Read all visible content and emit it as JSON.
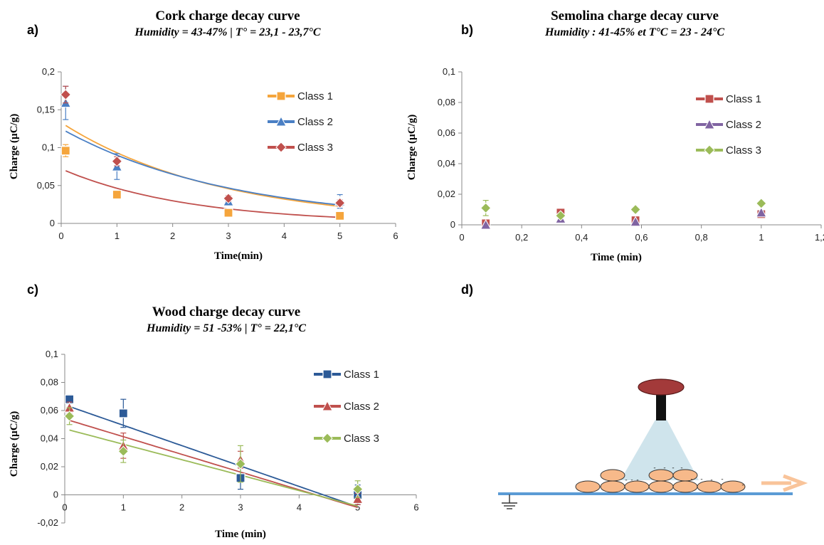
{
  "panel_labels": [
    "a)",
    "b)",
    "c)",
    "d)"
  ],
  "colors": {
    "orange": "#f5a53c",
    "blue": "#4a7fc4",
    "red": "#c0504d",
    "purple": "#8064a2",
    "green": "#9bbb59",
    "navy": "#2c5a97",
    "diagram_line": "#5b9bd5",
    "particle": "#f7b98a",
    "head": "#a33a3a",
    "beam": "#cfe4ec",
    "arrow": "#f9c49a"
  },
  "chart_data": [
    {
      "id": "a",
      "type": "scatter",
      "title": "Cork charge decay curve",
      "subtitle": "Humidity = 43-47%   |  T° = 23,1 - 23,7°C",
      "xlabel": "Time(min)",
      "ylabel": "Charge (µC/g)",
      "xlim": [
        0,
        6
      ],
      "ylim": [
        0,
        0.2
      ],
      "xticks": [
        "0",
        "1",
        "2",
        "3",
        "4",
        "5",
        "6"
      ],
      "yticks": [
        "0",
        "0,05",
        "0,1",
        "0,15",
        "0,2"
      ],
      "legend_position": "top-right",
      "series": [
        {
          "name": "Class 1",
          "color": "#f5a53c",
          "marker": "square",
          "x": [
            0.08,
            1,
            3,
            5
          ],
          "y": [
            0.096,
            0.038,
            0.014,
            0.01
          ],
          "err": [
            0.008,
            0.003,
            0.002,
            0.002
          ],
          "trend": {
            "type": "exp",
            "a": 0.133,
            "b": 0.355
          }
        },
        {
          "name": "Class 2",
          "color": "#4a7fc4",
          "marker": "triangle",
          "x": [
            0.08,
            1,
            3,
            5
          ],
          "y": [
            0.159,
            0.075,
            0.029,
            0.029
          ],
          "err": [
            0.022,
            0.017,
            0.005,
            0.009
          ],
          "trend": {
            "type": "exp",
            "a": 0.125,
            "b": 0.328
          }
        },
        {
          "name": "Class 3",
          "color": "#c0504d",
          "marker": "diamond",
          "x": [
            0.08,
            1,
            3,
            5
          ],
          "y": [
            0.17,
            0.082,
            0.033,
            0.027
          ],
          "err": [
            0.011,
            0.006,
            0.004,
            0.004
          ],
          "trend": {
            "type": "exp",
            "a": 0.072,
            "b": 0.44
          }
        }
      ]
    },
    {
      "id": "b",
      "type": "scatter",
      "title": "Semolina charge decay curve",
      "subtitle": "Humidity : 41-45%  et T°C = 23 - 24°C",
      "xlabel": "Time (min)",
      "ylabel": "Charge (µC/g)",
      "xlim": [
        0,
        1.2
      ],
      "ylim": [
        0,
        0.1
      ],
      "xticks": [
        "0",
        "0,2",
        "0,4",
        "0,6",
        "0,8",
        "1",
        "1,2"
      ],
      "yticks": [
        "0",
        "0,02",
        "0,04",
        "0,06",
        "0,08",
        "0,1"
      ],
      "legend_position": "top-right",
      "series": [
        {
          "name": "Class 1",
          "color": "#c0504d",
          "marker": "square",
          "x": [
            0.08,
            0.33,
            0.58,
            1
          ],
          "y": [
            0.001,
            0.008,
            0.003,
            0.007
          ],
          "err": [
            0.001,
            0.001,
            0.001,
            0.001
          ]
        },
        {
          "name": "Class 2",
          "color": "#8064a2",
          "marker": "triangle",
          "x": [
            0.08,
            0.33,
            0.58,
            1
          ],
          "y": [
            0.0,
            0.004,
            0.002,
            0.008
          ],
          "err": [
            0.001,
            0.001,
            0.001,
            0.001
          ]
        },
        {
          "name": "Class 3",
          "color": "#9bbb59",
          "marker": "diamond",
          "x": [
            0.08,
            0.33,
            0.58,
            1
          ],
          "y": [
            0.011,
            0.006,
            0.01,
            0.014
          ],
          "err": [
            0.005,
            0.001,
            0.001,
            0.001
          ]
        }
      ]
    },
    {
      "id": "c",
      "type": "scatter",
      "title": "Wood charge decay curve",
      "subtitle": "Humidity = 51 -53%   |  T° = 22,1°C",
      "xlabel": "Time (min)",
      "ylabel": "Charge (µC/g)",
      "xlim": [
        0,
        6
      ],
      "ylim": [
        -0.02,
        0.1
      ],
      "xticks": [
        "0",
        "1",
        "2",
        "3",
        "4",
        "5",
        "6"
      ],
      "yticks": [
        "-0,02",
        "0",
        "0,02",
        "0,04",
        "0,06",
        "0,08",
        "0,1"
      ],
      "legend_position": "top-right",
      "series": [
        {
          "name": "Class 1",
          "color": "#2c5a97",
          "marker": "square",
          "x": [
            0.08,
            1,
            3,
            5
          ],
          "y": [
            0.068,
            0.058,
            0.012,
            0.0
          ],
          "err": [
            0.003,
            0.01,
            0.008,
            0.007
          ],
          "trend": {
            "type": "linear",
            "m": -0.0145,
            "c": 0.064
          }
        },
        {
          "name": "Class 2",
          "color": "#c0504d",
          "marker": "triangle",
          "x": [
            0.08,
            1,
            3,
            5
          ],
          "y": [
            0.062,
            0.035,
            0.025,
            -0.003
          ],
          "err": [
            0.004,
            0.009,
            0.006,
            0.004
          ],
          "trend": {
            "type": "linear",
            "m": -0.0126,
            "c": 0.054
          }
        },
        {
          "name": "Class 3",
          "color": "#9bbb59",
          "marker": "diamond",
          "x": [
            0.08,
            1,
            3,
            5
          ],
          "y": [
            0.056,
            0.031,
            0.022,
            0.004
          ],
          "err": [
            0.006,
            0.008,
            0.013,
            0.006
          ],
          "trend": {
            "type": "linear",
            "m": -0.011,
            "c": 0.047
          }
        }
      ]
    }
  ]
}
